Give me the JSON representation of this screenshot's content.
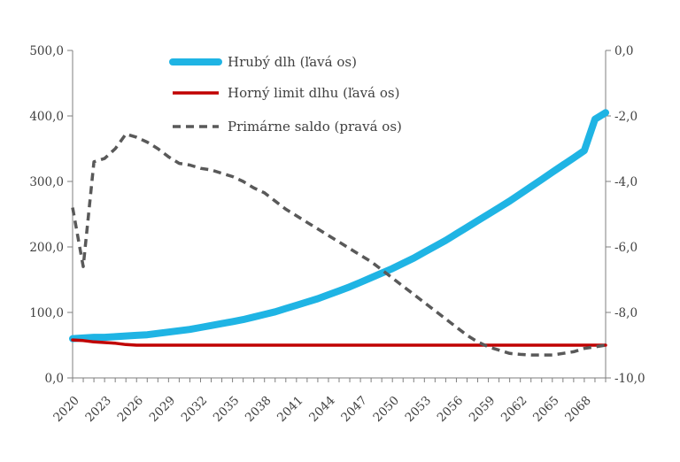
{
  "chart_data": {
    "type": "line",
    "title": "",
    "xlabel": "",
    "ylabel": "",
    "x": [
      2020,
      2021,
      2022,
      2023,
      2024,
      2025,
      2026,
      2027,
      2028,
      2029,
      2030,
      2031,
      2032,
      2033,
      2034,
      2035,
      2036,
      2037,
      2038,
      2039,
      2040,
      2041,
      2042,
      2043,
      2044,
      2045,
      2046,
      2047,
      2048,
      2049,
      2050,
      2051,
      2052,
      2053,
      2054,
      2055,
      2056,
      2057,
      2058,
      2059,
      2060,
      2061,
      2062,
      2063,
      2064,
      2065,
      2066,
      2067,
      2068,
      2069,
      2070
    ],
    "x_tick_labels": [
      "2020",
      "2023",
      "2026",
      "2029",
      "2032",
      "2035",
      "2038",
      "2041",
      "2044",
      "2047",
      "2050",
      "2053",
      "2056",
      "2059",
      "2062",
      "2065",
      "2068"
    ],
    "x_tick_years": [
      2020,
      2023,
      2026,
      2029,
      2032,
      2035,
      2038,
      2041,
      2044,
      2047,
      2050,
      2053,
      2056,
      2059,
      2062,
      2065,
      2068
    ],
    "y_left": {
      "range": [
        0,
        500
      ],
      "ticks": [
        "0,0",
        "100,0",
        "200,0",
        "300,0",
        "400,0",
        "500,0"
      ]
    },
    "y_right": {
      "range": [
        -10,
        0
      ],
      "ticks": [
        "-10,0",
        "-8,0",
        "-6,0",
        "-4,0",
        "-2,0",
        "0,0"
      ]
    },
    "legend_position": "top-center",
    "series": [
      {
        "name": "Hrubý dlh (ľavá os)",
        "axis": "left",
        "color": "#1fb4e4",
        "style": "solid-thick",
        "values": [
          60,
          61,
          62,
          62,
          63,
          64,
          65,
          66,
          68,
          70,
          72,
          74,
          77,
          80,
          83,
          86,
          89,
          93,
          97,
          101,
          106,
          111,
          116,
          121,
          127,
          133,
          139,
          146,
          153,
          160,
          167,
          175,
          183,
          192,
          201,
          210,
          220,
          230,
          240,
          250,
          260,
          270,
          281,
          292,
          303,
          314,
          325,
          336,
          347,
          395,
          405
        ]
      },
      {
        "name": "Horný limit dlhu (ľavá os)",
        "axis": "left",
        "color": "#c00000",
        "style": "solid",
        "values": [
          58,
          57,
          55,
          54,
          53,
          51,
          50,
          50,
          50,
          50,
          50,
          50,
          50,
          50,
          50,
          50,
          50,
          50,
          50,
          50,
          50,
          50,
          50,
          50,
          50,
          50,
          50,
          50,
          50,
          50,
          50,
          50,
          50,
          50,
          50,
          50,
          50,
          50,
          50,
          50,
          50,
          50,
          50,
          50,
          50,
          50,
          50,
          50,
          50,
          50,
          50
        ]
      },
      {
        "name": "Primárne saldo (pravá os)",
        "axis": "right",
        "color": "#595959",
        "style": "dashed",
        "values": [
          -4.8,
          -6.6,
          -3.4,
          -3.3,
          -3.0,
          -2.55,
          -2.65,
          -2.8,
          -3.0,
          -3.25,
          -3.45,
          -3.5,
          -3.6,
          -3.65,
          -3.75,
          -3.85,
          -4.0,
          -4.2,
          -4.35,
          -4.6,
          -4.85,
          -5.05,
          -5.25,
          -5.45,
          -5.65,
          -5.85,
          -6.05,
          -6.25,
          -6.45,
          -6.7,
          -6.95,
          -7.2,
          -7.45,
          -7.7,
          -7.95,
          -8.2,
          -8.45,
          -8.7,
          -8.9,
          -9.05,
          -9.15,
          -9.25,
          -9.28,
          -9.3,
          -9.3,
          -9.3,
          -9.25,
          -9.2,
          -9.1,
          -9.05,
          -9.0
        ]
      }
    ]
  }
}
